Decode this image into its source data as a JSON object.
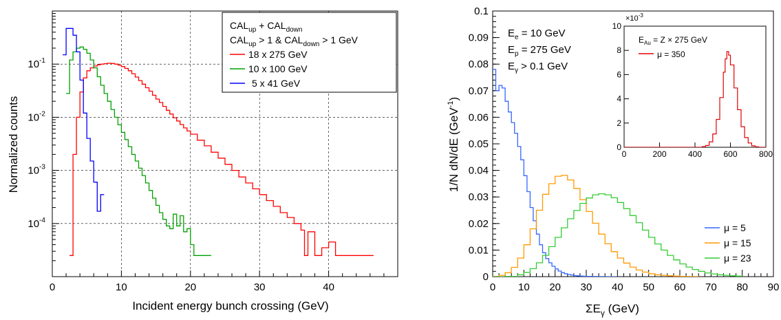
{
  "chart_data": [
    {
      "type": "line",
      "subtype": "step",
      "xlabel": "Incident energy bunch crossing (GeV)",
      "ylabel": "Normalized counts",
      "xlim": [
        0,
        50
      ],
      "ylim": [
        1e-05,
        1
      ],
      "yscale": "log",
      "xticks": [
        "0",
        "10",
        "20",
        "30",
        "40"
      ],
      "yticks": [
        "10",
        "10",
        "10",
        "10"
      ],
      "ytick_exponents": [
        "-1",
        "-2",
        "-3",
        "-4"
      ],
      "grid": true,
      "legend_position": "top-right",
      "legend_header_lines": [
        "CAL_up + CAL_down",
        "CAL_up > 1 & CAL_down > 1 GeV"
      ],
      "series": [
        {
          "name": "18 x 275 GeV",
          "color": "#ff0000",
          "x": [
            2.5,
            3,
            3.5,
            4,
            4.5,
            5,
            5.5,
            6,
            6.5,
            7,
            7.5,
            8,
            8.5,
            9,
            9.5,
            10,
            10.5,
            11,
            11.5,
            12,
            12.5,
            13,
            13.5,
            14,
            14.5,
            15,
            15.5,
            16,
            16.5,
            17,
            17.5,
            18,
            18.5,
            19,
            19.5,
            20,
            21,
            22,
            23,
            24,
            25,
            26,
            27,
            28,
            29,
            30,
            31,
            32,
            33,
            34,
            35,
            36,
            36.5,
            37,
            37.5,
            38,
            39,
            40,
            41,
            42,
            43,
            44,
            45,
            46,
            46.5
          ],
          "y": [
            2.5e-05,
            0.002,
            0.01,
            0.03,
            0.055,
            0.075,
            0.085,
            0.092,
            0.097,
            0.1,
            0.102,
            0.104,
            0.103,
            0.1,
            0.096,
            0.09,
            0.083,
            0.075,
            0.066,
            0.057,
            0.049,
            0.042,
            0.036,
            0.031,
            0.026,
            0.022,
            0.019,
            0.016,
            0.0135,
            0.0115,
            0.0098,
            0.0085,
            0.0073,
            0.0063,
            0.0055,
            0.0048,
            0.0037,
            0.0029,
            0.0022,
            0.0017,
            0.0013,
            0.001,
            0.00075,
            0.00058,
            0.00045,
            0.00035,
            0.00027,
            0.00021,
            0.00016,
            0.00013,
            0.0001,
            7.5e-05,
            2.5e-05,
            7e-05,
            7e-05,
            2.5e-05,
            3.5e-05,
            4.5e-05,
            2.5e-05,
            2.5e-05,
            2.5e-05,
            2.5e-05,
            2.5e-05,
            2.5e-05,
            2.5e-05
          ]
        },
        {
          "name": "10 x 100 GeV",
          "color": "#00a000",
          "x": [
            2,
            2.5,
            3,
            3.5,
            4,
            4.5,
            5,
            5.5,
            6,
            6.5,
            7,
            7.5,
            8,
            8.5,
            9,
            9.5,
            10,
            10.5,
            11,
            11.5,
            12,
            12.5,
            13,
            13.5,
            14,
            14.5,
            15,
            15.5,
            16,
            16.5,
            17,
            17.5,
            18,
            18.5,
            19,
            19.5,
            20,
            20.5,
            21,
            22,
            23
          ],
          "y": [
            0.028,
            0.12,
            0.17,
            0.2,
            0.21,
            0.19,
            0.16,
            0.12,
            0.085,
            0.058,
            0.04,
            0.028,
            0.02,
            0.014,
            0.01,
            0.0072,
            0.0052,
            0.0038,
            0.0028,
            0.002,
            0.0015,
            0.0011,
            0.0008,
            0.00058,
            0.00042,
            0.0003,
            0.00022,
            0.00016,
            0.00012,
            9e-05,
            8e-05,
            0.00015,
            9e-05,
            0.00014,
            7e-05,
            8e-05,
            4e-05,
            2.5e-05,
            2.5e-05,
            2.5e-05,
            2.5e-05
          ]
        },
        {
          "name": "5 x 41 GeV",
          "color": "#0000ff",
          "x": [
            1.5,
            2,
            2.5,
            3,
            3.5,
            4,
            4.5,
            5,
            5.5,
            6,
            6.5,
            7,
            7.5
          ],
          "y": [
            0.15,
            0.47,
            0.47,
            0.35,
            0.17,
            0.05,
            0.012,
            0.004,
            0.0015,
            0.0006,
            0.00017,
            0.00035,
            0.00035
          ]
        }
      ]
    },
    {
      "type": "line",
      "subtype": "step",
      "xlabel": "ΣE_γ (GeV)",
      "ylabel": "1/N dN/dE (GeV^-1)",
      "xlim": [
        0,
        90
      ],
      "ylim": [
        0,
        0.1
      ],
      "xticks": [
        "0",
        "10",
        "20",
        "30",
        "40",
        "50",
        "60",
        "70",
        "80",
        "90"
      ],
      "yticks": [
        "0",
        "0.01",
        "0.02",
        "0.03",
        "0.04",
        "0.05",
        "0.06",
        "0.07",
        "0.08",
        "0.09",
        "0.1"
      ],
      "grid": false,
      "legend_position": "bottom-right",
      "annotations": [
        "E_e = 10 GeV",
        "E_p = 275 GeV",
        "E_γ > 0.1 GeV"
      ],
      "series": [
        {
          "name": "μ = 5",
          "color": "#3366ff",
          "x": [
            0,
            1,
            2,
            3,
            4,
            5,
            6,
            7,
            8,
            9,
            10,
            11,
            12,
            13,
            14,
            15,
            16,
            17,
            18,
            19,
            20,
            21,
            22,
            23,
            24,
            25,
            26,
            27,
            28,
            29,
            30,
            32,
            34,
            36,
            38,
            40
          ],
          "y": [
            0.078,
            0.07,
            0.072,
            0.071,
            0.066,
            0.062,
            0.058,
            0.054,
            0.049,
            0.044,
            0.038,
            0.032,
            0.026,
            0.021,
            0.016,
            0.012,
            0.009,
            0.0068,
            0.0052,
            0.0039,
            0.0029,
            0.0021,
            0.0015,
            0.0011,
            0.0008,
            0.0006,
            0.0004,
            0.0003,
            0.0002,
            0.00015,
            0.0001,
            5e-05,
            2e-05,
            1e-05,
            0,
            0
          ]
        },
        {
          "name": "μ = 15",
          "color": "#ff9900",
          "x": [
            0,
            2,
            4,
            6,
            8,
            10,
            12,
            14,
            16,
            18,
            20,
            22,
            24,
            26,
            28,
            30,
            32,
            34,
            36,
            38,
            40,
            42,
            44,
            46,
            48,
            50,
            52,
            54,
            56,
            58,
            60,
            62,
            64,
            66
          ],
          "y": [
            0.0001,
            0.0005,
            0.0015,
            0.0035,
            0.007,
            0.012,
            0.018,
            0.025,
            0.031,
            0.035,
            0.0378,
            0.0381,
            0.0364,
            0.0332,
            0.029,
            0.0245,
            0.0201,
            0.016,
            0.0124,
            0.0094,
            0.007,
            0.0051,
            0.0036,
            0.0025,
            0.0017,
            0.0011,
            0.0007,
            0.0005,
            0.0003,
            0.0002,
            0.0001,
            5e-05,
            2e-05,
            0
          ]
        },
        {
          "name": "μ = 23",
          "color": "#33cc33",
          "x": [
            0,
            4,
            8,
            10,
            12,
            14,
            16,
            18,
            20,
            22,
            24,
            26,
            28,
            30,
            32,
            34,
            36,
            38,
            40,
            42,
            44,
            46,
            48,
            50,
            52,
            54,
            56,
            58,
            60,
            62,
            64,
            66,
            68,
            70,
            72,
            74,
            76,
            78,
            80
          ],
          "y": [
            0,
            0.0001,
            0.0007,
            0.0016,
            0.003,
            0.0052,
            0.008,
            0.0113,
            0.0148,
            0.0184,
            0.0218,
            0.0249,
            0.0276,
            0.0296,
            0.0308,
            0.0312,
            0.0308,
            0.0297,
            0.0279,
            0.0256,
            0.023,
            0.0203,
            0.0175,
            0.0148,
            0.0123,
            0.01,
            0.008,
            0.0063,
            0.0048,
            0.0036,
            0.0027,
            0.002,
            0.0014,
            0.001,
            0.0007,
            0.0005,
            0.0003,
            0.0002,
            0.0001
          ]
        }
      ]
    },
    {
      "type": "line",
      "subtype": "step",
      "inset": true,
      "xlim": [
        0,
        800
      ],
      "ylim": [
        0,
        10
      ],
      "y_multiplier": "×10",
      "y_multiplier_exponent": "-3",
      "xticks": [
        "0",
        "200",
        "400",
        "600",
        "800"
      ],
      "yticks": [
        "0",
        "2",
        "4",
        "6",
        "8",
        "10"
      ],
      "annotation": "E_Au = Z × 275 GeV",
      "series": [
        {
          "name": "μ = 350",
          "color": "#e00000",
          "x": [
            0,
            400,
            440,
            460,
            480,
            500,
            520,
            540,
            560,
            570,
            580,
            590,
            600,
            620,
            640,
            660,
            680,
            700,
            720,
            740,
            760,
            800
          ],
          "y": [
            0,
            0,
            0.05,
            0.15,
            0.45,
            1.1,
            2.3,
            4.1,
            6.2,
            7.3,
            7.9,
            7.6,
            6.8,
            4.9,
            3.1,
            1.7,
            0.8,
            0.35,
            0.12,
            0.04,
            0,
            0
          ]
        }
      ]
    }
  ]
}
